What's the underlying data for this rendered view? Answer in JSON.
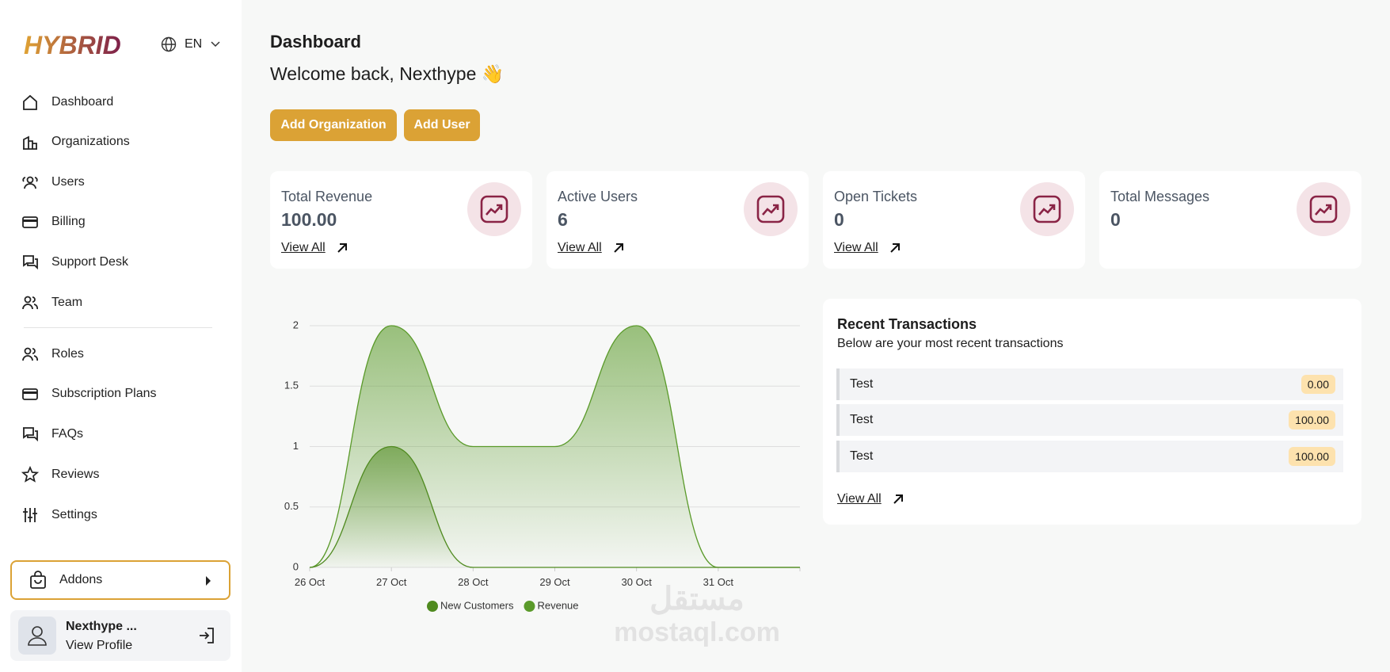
{
  "sidebar": {
    "logo": "HYBRID",
    "language": "EN",
    "nav": [
      "Dashboard",
      "Organizations",
      "Users",
      "Billing",
      "Support Desk",
      "Team",
      "Roles",
      "Subscription Plans",
      "FAQs",
      "Reviews",
      "Settings"
    ],
    "addons": "Addons",
    "profile": {
      "name": "Nexthype ...",
      "link": "View Profile"
    }
  },
  "header": {
    "title": "Dashboard",
    "welcome": "Welcome back, Nexthype 👋"
  },
  "actions": [
    "Add Organization",
    "Add User"
  ],
  "stats": [
    {
      "label": "Total Revenue",
      "value": "100.00",
      "link": "View All"
    },
    {
      "label": "Active Users",
      "value": "6",
      "link": "View All"
    },
    {
      "label": "Open Tickets",
      "value": "0",
      "link": "View All"
    },
    {
      "label": "Total Messages",
      "value": "0"
    }
  ],
  "chart_data": {
    "type": "area",
    "categories": [
      "26 Oct",
      "27 Oct",
      "28 Oct",
      "29 Oct",
      "30 Oct",
      "31 Oct",
      null
    ],
    "series": [
      {
        "name": "New Customers",
        "color": "#4f8a1f",
        "values": [
          0,
          1,
          0,
          0,
          0,
          0,
          0
        ]
      },
      {
        "name": "Revenue",
        "color": "#5a9a2a",
        "values": [
          0,
          2,
          1,
          1,
          2,
          0,
          0
        ]
      }
    ],
    "ylim": [
      0,
      2
    ],
    "yticks": [
      0,
      0.5,
      1,
      1.5,
      2
    ],
    "grid": true,
    "legend": "bottom"
  },
  "transactions": {
    "title": "Recent Transactions",
    "subtitle": "Below are your most recent transactions",
    "rows": [
      {
        "name": "Test",
        "amount": "0.00"
      },
      {
        "name": "Test",
        "amount": "100.00"
      },
      {
        "name": "Test",
        "amount": "100.00"
      }
    ],
    "link": "View All"
  },
  "watermark": {
    "arabic": "مستقل",
    "latin": "mostaql.com"
  }
}
